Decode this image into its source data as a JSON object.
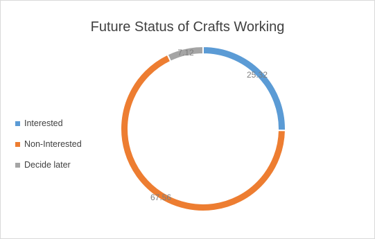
{
  "chart_data": {
    "type": "pie",
    "title": "Future Status of Crafts Working",
    "legend_position": "left",
    "categories": [
      "Interested",
      "Non-Interested",
      "Decide later"
    ],
    "values": [
      25.32,
      67.56,
      7.12
    ],
    "value_labels": [
      "25.32",
      "67.56",
      "7.12"
    ],
    "colors": [
      "#5b9bd5",
      "#ed7d31",
      "#a5a5a5"
    ]
  }
}
